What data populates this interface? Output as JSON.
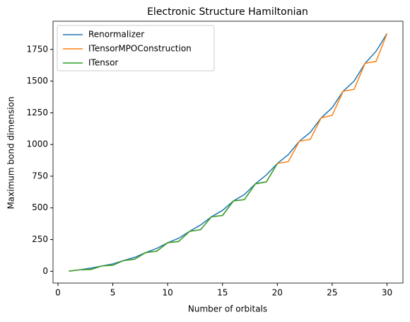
{
  "chart_data": {
    "type": "line",
    "title": "Electronic Structure Hamiltonian",
    "xlabel": "Number of orbitals",
    "ylabel": "Maximum bond dimension",
    "x": [
      1,
      2,
      3,
      4,
      5,
      6,
      7,
      8,
      9,
      10,
      11,
      12,
      13,
      14,
      15,
      16,
      17,
      18,
      19,
      20,
      21,
      22,
      23,
      24,
      25,
      26,
      27,
      28,
      29,
      30
    ],
    "series": [
      {
        "name": "Renormalizer",
        "color": "#1f77b4",
        "values": [
          1,
          12,
          25,
          42,
          58,
          85,
          110,
          148,
          180,
          225,
          260,
          315,
          365,
          430,
          480,
          555,
          605,
          690,
          760,
          850,
          920,
          1025,
          1095,
          1210,
          1290,
          1420,
          1500,
          1640,
          1735,
          1875
        ]
      },
      {
        "name": "ITensorMPOConstruction",
        "color": "#ff7f0e",
        "values": [
          1,
          12,
          14,
          42,
          48,
          85,
          95,
          148,
          158,
          225,
          235,
          315,
          328,
          430,
          440,
          555,
          565,
          690,
          705,
          850,
          865,
          1025,
          1040,
          1210,
          1230,
          1420,
          1435,
          1640,
          1655,
          1875
        ]
      },
      {
        "name": "ITensor",
        "color": "#2ca02c",
        "values": [
          1,
          12,
          14,
          42,
          48,
          85,
          95,
          148,
          158,
          225,
          235,
          315,
          328,
          430,
          440,
          555,
          565,
          690,
          705,
          850,
          null,
          null,
          null,
          null,
          null,
          null,
          null,
          null,
          null,
          null
        ]
      }
    ],
    "xlim": [
      -0.45,
      31.45
    ],
    "xticks": [
      0,
      5,
      10,
      15,
      20,
      25,
      30
    ],
    "ylim": [
      -93,
      1972
    ],
    "yticks": [
      0,
      250,
      500,
      750,
      1000,
      1250,
      1500,
      1750
    ],
    "legend": "upper left"
  }
}
